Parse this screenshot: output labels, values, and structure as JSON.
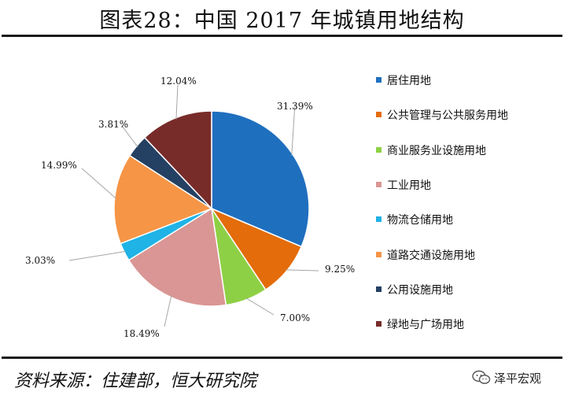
{
  "header": {
    "title": "图表28：中国 2017 年城镇用地结构"
  },
  "footer": {
    "source": "资料来源：住建部，恒大研究院",
    "brand": "泽平宏观"
  },
  "chart_data": {
    "type": "pie",
    "title": "图表28：中国 2017 年城镇用地结构",
    "legend_position": "right",
    "categories": [
      "居住用地",
      "公共管理与公共服务用地",
      "商业服务业设施用地",
      "工业用地",
      "物流仓储用地",
      "道路交通设施用地",
      "公用设施用地",
      "绿地与广场用地"
    ],
    "values": [
      31.39,
      9.25,
      7.0,
      18.49,
      3.03,
      14.99,
      3.81,
      12.04
    ],
    "labels": [
      "31.39%",
      "9.25%",
      "7.00%",
      "18.49%",
      "3.03%",
      "14.99%",
      "3.81%",
      "12.04%"
    ],
    "colors": [
      "#1f6fbf",
      "#e46c0a",
      "#8ed045",
      "#d99694",
      "#1fb3e6",
      "#f69546",
      "#244062",
      "#772c2a"
    ]
  }
}
